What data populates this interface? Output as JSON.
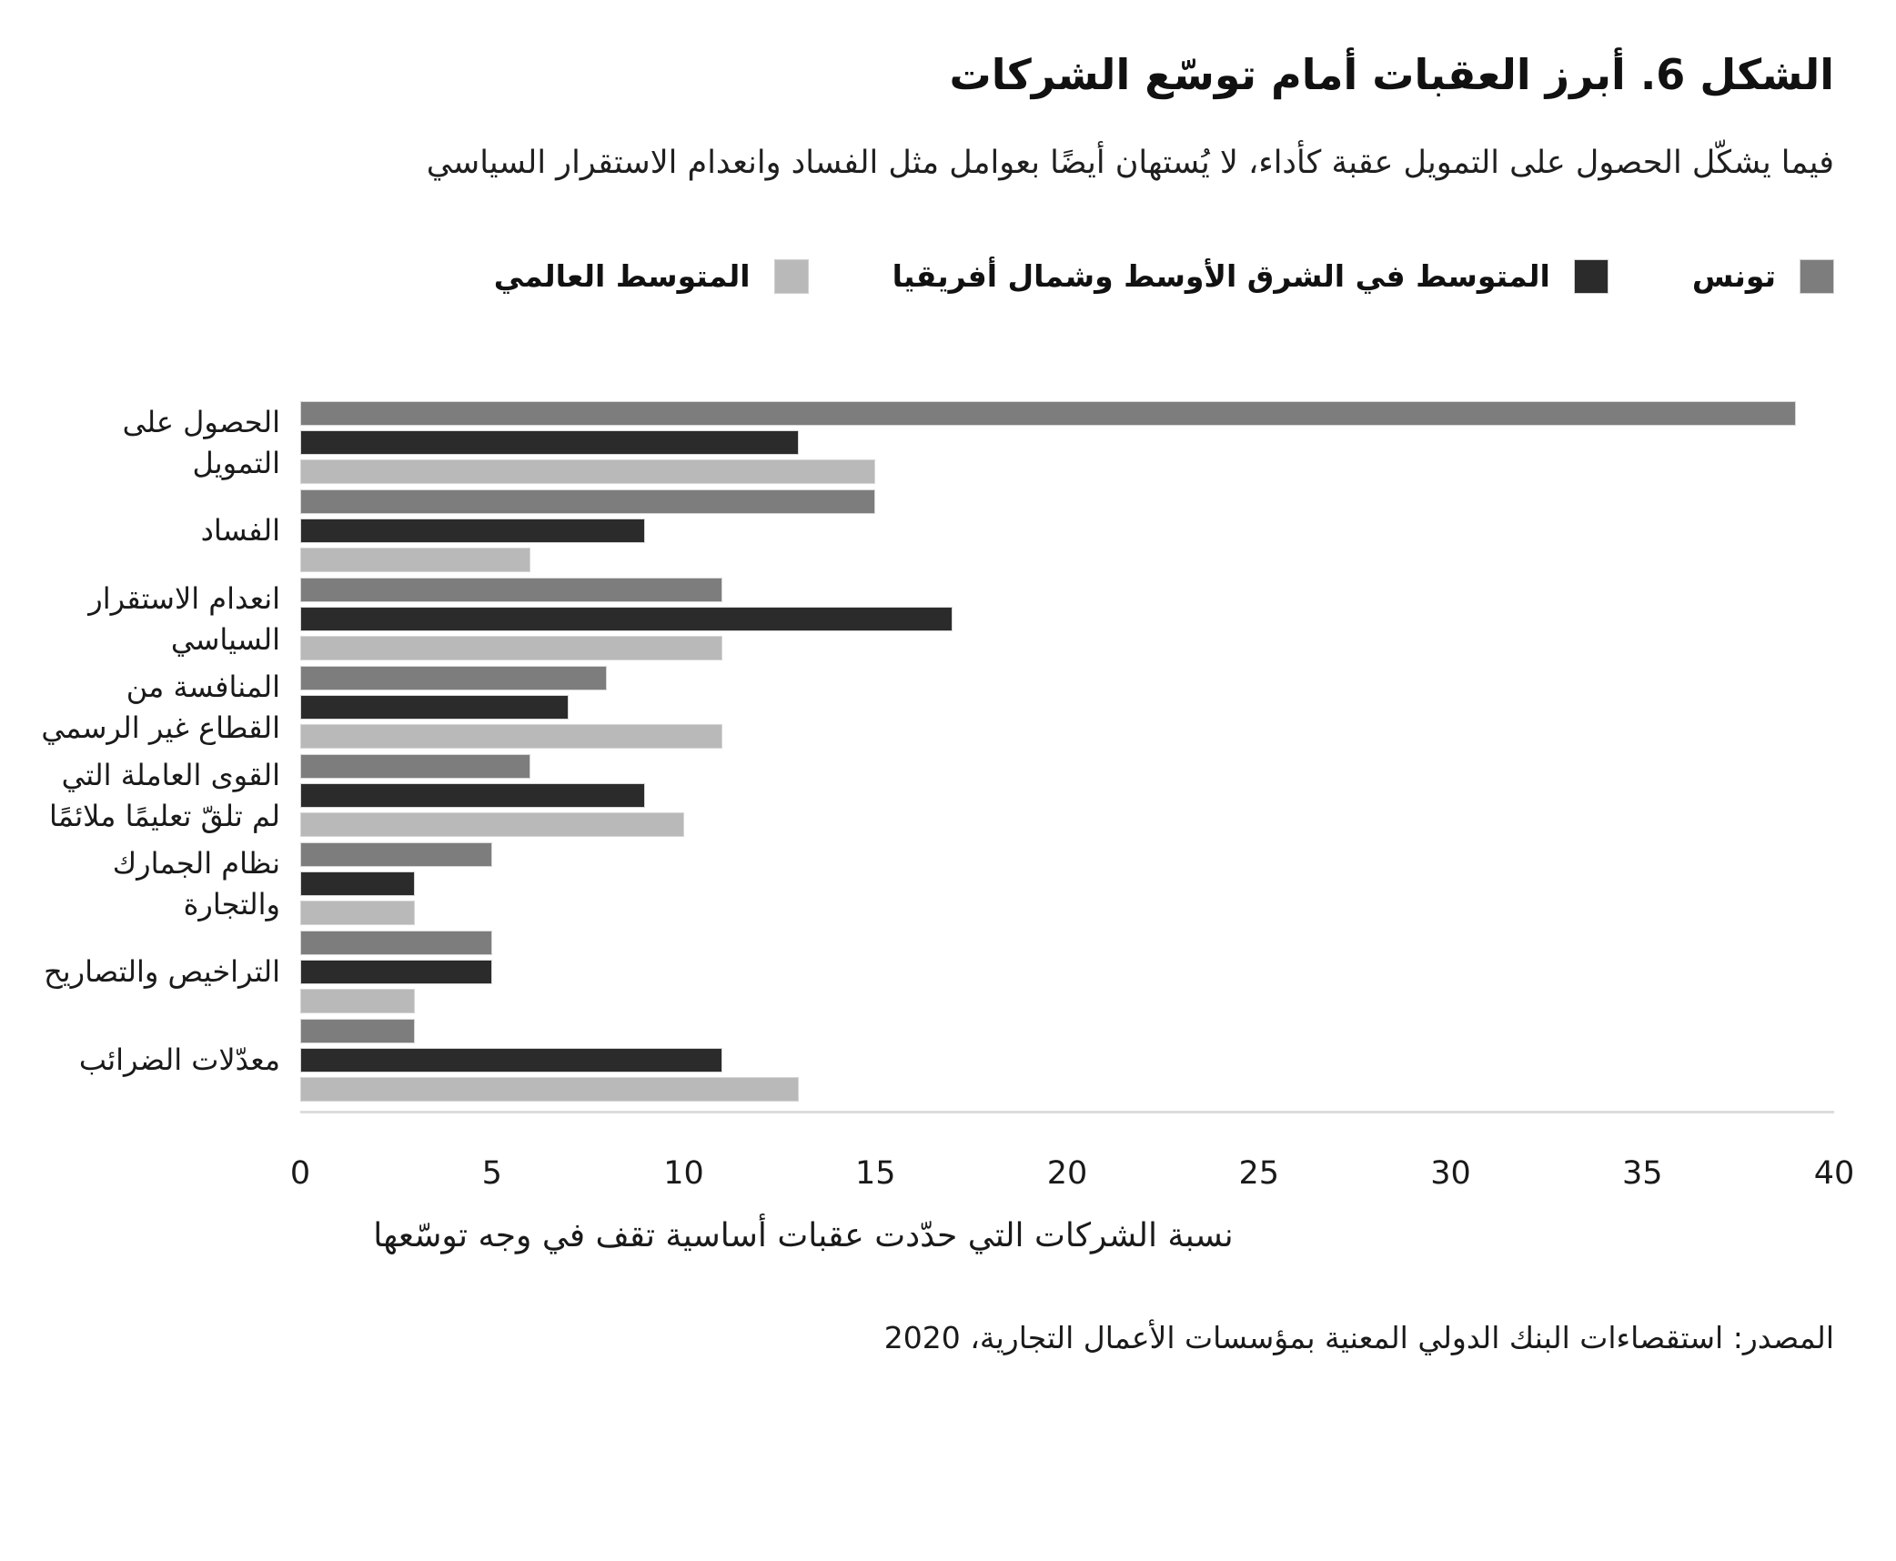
{
  "figure": {
    "title": "الشكل 6. أبرز العقبات أمام توسّع الشركات",
    "subtitle": "فيما يشكّل الحصول على التمويل عقبة كأداء، لا يُستهان أيضًا بعوامل مثل الفساد وانعدام الاستقرار السياسي",
    "source": "المصدر: استقصاءات البنك الدولي المعنية بمؤسسات الأعمال التجارية، 2020"
  },
  "chart_data": {
    "type": "bar",
    "orientation": "horizontal",
    "title": "الشكل 6. أبرز العقبات أمام توسّع الشركات",
    "categories": [
      "الحصول على التمويل",
      "الفساد",
      "انعدام الاستقرار السياسي",
      "المنافسة من القطاع غير الرسمي",
      "القوى العاملة التي لم تلقّ تعليمًا ملائمًا",
      "نظام الجمارك والتجارة",
      "التراخيص والتصاريح",
      "معدّلات الضرائب"
    ],
    "series": [
      {
        "key": "tunisia",
        "name": "تونس",
        "color": "#7d7d7d",
        "values": [
          39,
          15,
          11,
          8,
          6,
          5,
          5,
          3
        ]
      },
      {
        "key": "mena-average",
        "name": "المتوسط في الشرق الأوسط وشمال أفريقيا",
        "color": "#2b2b2b",
        "values": [
          13,
          9,
          17,
          7,
          9,
          3,
          5,
          11
        ]
      },
      {
        "key": "global-average",
        "name": "المتوسط العالمي",
        "color": "#b9b9b9",
        "values": [
          15,
          6,
          11,
          11,
          10,
          3,
          3,
          13
        ]
      }
    ],
    "xlabel": "نسبة الشركات التي حدّدت عقبات أساسية تقف في وجه توسّعها",
    "xlim": [
      0,
      40
    ],
    "xticks": [
      0,
      5,
      10,
      15,
      20,
      25,
      30,
      35,
      40
    ],
    "grid": false,
    "legend_position": "top"
  }
}
